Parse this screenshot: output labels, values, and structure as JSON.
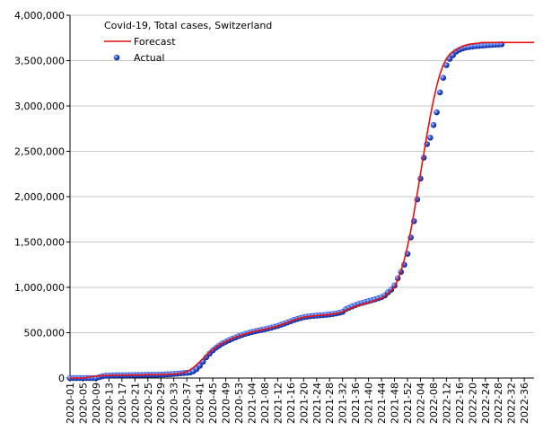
{
  "chart_data": {
    "type": "line",
    "legend_title": "Covid-19, Total cases, Switzerland",
    "legend": "top-left",
    "grid": true,
    "categories": [
      "2020-01",
      null,
      null,
      null,
      "2020-05",
      null,
      null,
      null,
      "2020-09",
      null,
      null,
      null,
      "2020-13",
      null,
      null,
      null,
      "2020-17",
      null,
      null,
      null,
      "2020-21",
      null,
      null,
      null,
      "2020-25",
      null,
      null,
      null,
      "2020-29",
      null,
      null,
      null,
      "2020-33",
      null,
      null,
      null,
      "2020-37",
      null,
      null,
      null,
      "2020-41",
      null,
      null,
      null,
      "2020-45",
      null,
      null,
      null,
      "2020-49",
      null,
      null,
      null,
      "2020-53",
      null,
      null,
      null,
      "2021-04",
      null,
      null,
      null,
      "2021-08",
      null,
      null,
      null,
      "2021-12",
      null,
      null,
      null,
      "2021-16",
      null,
      null,
      null,
      "2021-20",
      null,
      null,
      null,
      "2021-24",
      null,
      null,
      null,
      "2021-28",
      null,
      null,
      null,
      "2021-32",
      null,
      null,
      null,
      "2021-36",
      null,
      null,
      null,
      "2021-40",
      null,
      null,
      null,
      "2021-44",
      null,
      null,
      null,
      "2021-48",
      null,
      null,
      null,
      "2021-52",
      null,
      null,
      null,
      "2022-04",
      null,
      null,
      null,
      "2022-08",
      null,
      null,
      null,
      "2022-12",
      null,
      null,
      null,
      "2022-16",
      null,
      null,
      null,
      "2022-20",
      null,
      null,
      null,
      "2022-24",
      null,
      null,
      null,
      "2022-28",
      null,
      null,
      null,
      "2022-32",
      null,
      null,
      null,
      "2022-36",
      null,
      null,
      null
    ],
    "ylim": [
      0,
      4000000
    ],
    "yticks": [
      0,
      {
        "value": 500000,
        "label": "500,000"
      },
      {
        "value": 1000000,
        "label": "1,000,000"
      },
      {
        "value": 1500000,
        "label": "1,500,000"
      },
      {
        "value": 2000000,
        "label": "2,000,000"
      },
      {
        "value": 2500000,
        "label": "2,500,000"
      },
      {
        "value": 3000000,
        "label": "3,000,000"
      },
      {
        "value": 3500000,
        "label": "3,500,000"
      },
      {
        "value": 4000000,
        "label": "4,000,000"
      }
    ],
    "series": [
      {
        "name": "Forecast",
        "color": "#e8110f",
        "mode": "line",
        "values": [
          0,
          0,
          0,
          0,
          0,
          5000,
          10000,
          15000,
          20000,
          23000,
          25000,
          27000,
          28000,
          30000,
          31000,
          31000,
          31000,
          32000,
          32000,
          33000,
          33000,
          34000,
          34000,
          35000,
          35000,
          36000,
          36000,
          37000,
          38000,
          39000,
          40000,
          42000,
          44000,
          47000,
          52000,
          60000,
          72000,
          90000,
          115000,
          145000,
          180000,
          215000,
          250000,
          285000,
          315000,
          342000,
          365000,
          385000,
          403000,
          420000,
          436000,
          450000,
          463000,
          475000,
          487000,
          497000,
          507000,
          515000,
          523000,
          530000,
          538000,
          546000,
          555000,
          565000,
          575000,
          587000,
          600000,
          613000,
          627000,
          640000,
          652000,
          662000,
          670000,
          676000,
          681000,
          685000,
          688000,
          691000,
          694000,
          697000,
          701000,
          706000,
          712000,
          720000,
          730000,
          745000,
          760000,
          775000,
          788000,
          800000,
          810000,
          820000,
          830000,
          842000,
          855000,
          870000,
          880000,
          905000,
          935000,
          965000,
          1000000,
          1080000,
          1180000,
          1300000,
          1450000,
          1620000,
          1820000,
          2030000,
          2250000,
          2470000,
          2680000,
          2880000,
          3060000,
          3220000,
          3350000,
          3450000,
          3520000,
          3570000,
          3600000,
          3620000,
          3640000,
          3660000,
          3670000,
          3680000,
          3685000,
          3690000,
          3693000,
          3700000,
          3700000,
          3700000,
          3700000,
          3700000,
          3700000,
          3700000,
          3700000,
          3700000,
          3700000,
          3700000,
          3700000,
          3700000,
          3700000,
          3700000,
          3700000,
          3700000
        ]
      },
      {
        "name": "Actual",
        "color": "#1a3fd6",
        "mode": "markers",
        "values": [
          0,
          0,
          0,
          0,
          0,
          0,
          0,
          0,
          0,
          10000,
          20000,
          25000,
          27000,
          29000,
          30000,
          30000,
          31000,
          31000,
          32000,
          32000,
          33000,
          33000,
          34000,
          34000,
          35000,
          35000,
          36000,
          37000,
          38000,
          39000,
          41000,
          43000,
          45000,
          48000,
          52000,
          55000,
          58000,
          62000,
          75000,
          100000,
          135000,
          180000,
          230000,
          270000,
          305000,
          335000,
          360000,
          382000,
          400000,
          418000,
          434000,
          448000,
          462000,
          475000,
          487000,
          497000,
          507000,
          515000,
          523000,
          530000,
          538000,
          546000,
          555000,
          565000,
          575000,
          587000,
          600000,
          613000,
          627000,
          640000,
          652000,
          662000,
          670000,
          676000,
          681000,
          685000,
          688000,
          691000,
          694000,
          697000,
          701000,
          706000,
          712000,
          720000,
          730000,
          760000,
          775000,
          790000,
          805000,
          818000,
          828000,
          838000,
          848000,
          858000,
          868000,
          880000,
          892000,
          910000,
          945000,
          975000,
          1020000,
          1100000,
          1170000,
          1250000,
          1370000,
          1550000,
          1730000,
          1970000,
          2200000,
          2430000,
          2580000,
          2650000,
          2790000,
          2930000,
          3150000,
          3310000,
          3450000,
          3520000,
          3560000,
          3600000,
          3620000,
          3635000,
          3645000,
          3650000,
          3655000,
          3660000,
          3663000,
          3666000,
          3669000,
          3672000,
          3674000,
          3676000,
          3678000,
          3680000,
          null,
          null,
          null,
          null,
          null,
          null,
          null,
          null,
          null,
          null
        ]
      }
    ]
  }
}
